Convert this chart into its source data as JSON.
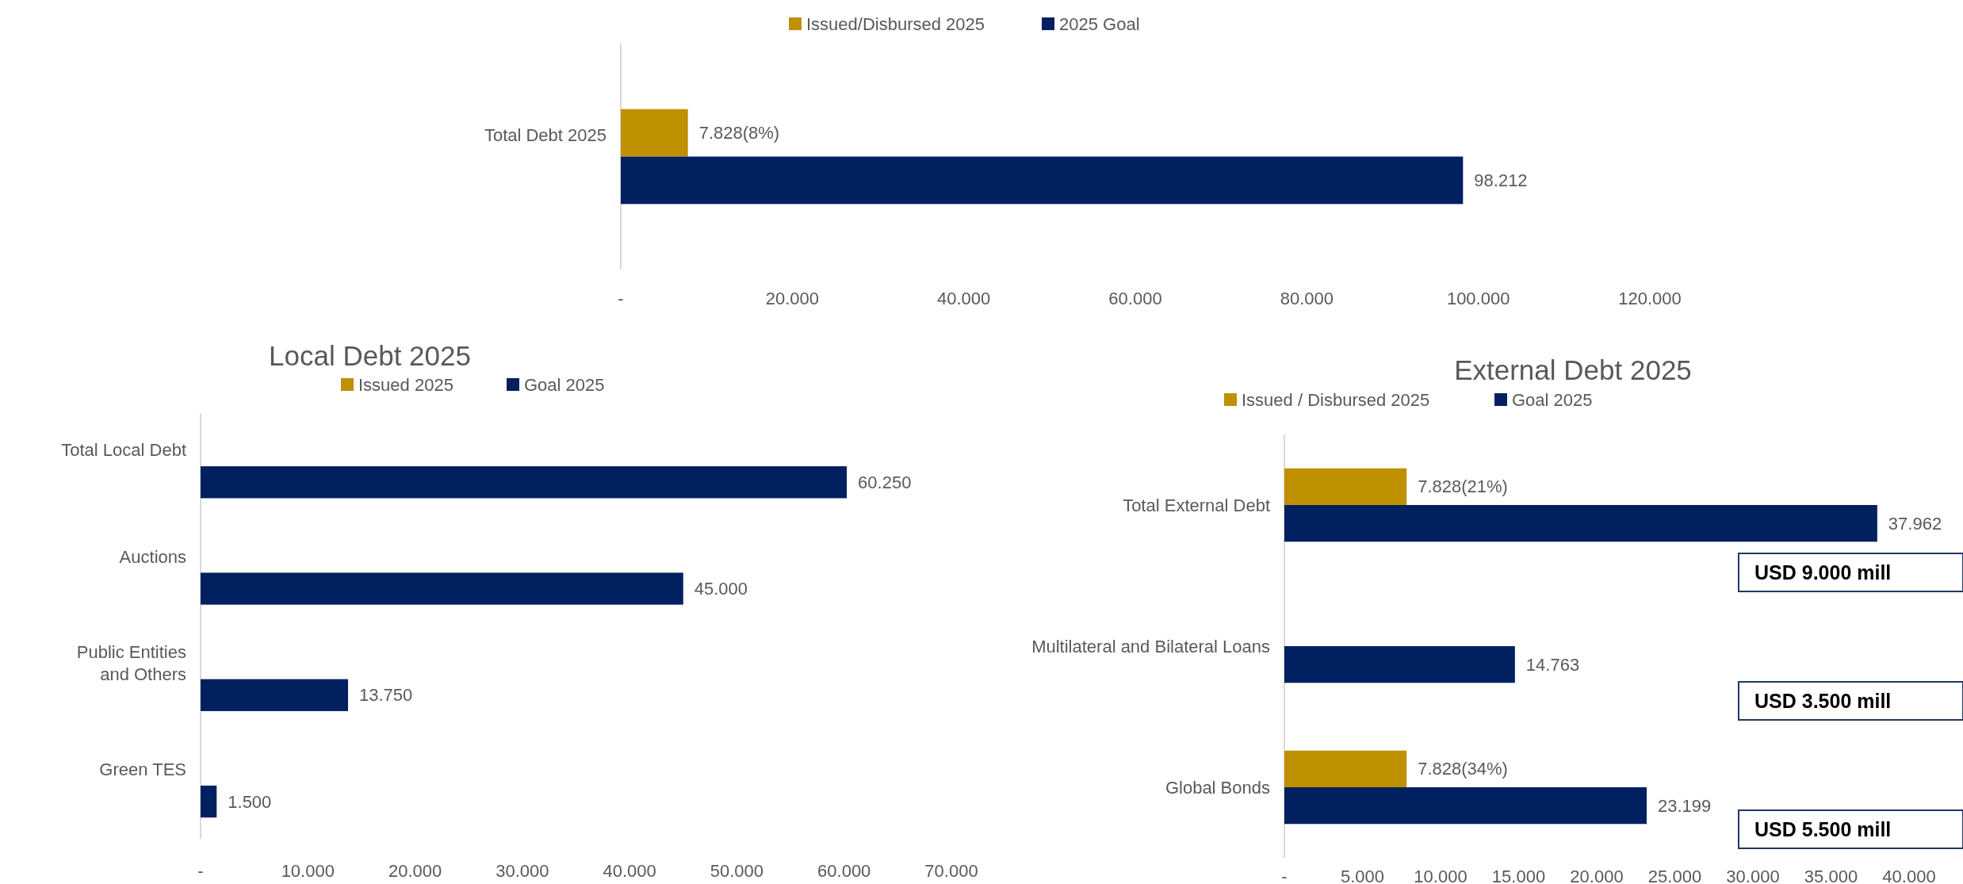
{
  "chart_data": [
    {
      "type": "bar",
      "orientation": "horizontal",
      "categories": [
        "Total Debt 2025"
      ],
      "series": [
        {
          "name": "Issued/Disbursed 2025",
          "color": "#bf9000",
          "values": [
            7828
          ],
          "value_labels": [
            "7.828(8%)"
          ]
        },
        {
          "name": "2025 Goal",
          "color": "#002060",
          "values": [
            98212
          ],
          "value_labels": [
            "98.212"
          ]
        }
      ],
      "xlim": [
        0,
        120000
      ],
      "xticks": [
        {
          "value": 0,
          "label": "-"
        },
        {
          "value": 20000,
          "label": "20.000"
        },
        {
          "value": 40000,
          "label": "40.000"
        },
        {
          "value": 60000,
          "label": "60.000"
        },
        {
          "value": 80000,
          "label": "80.000"
        },
        {
          "value": 100000,
          "label": "100.000"
        },
        {
          "value": 120000,
          "label": "120.000"
        }
      ],
      "legend": "top",
      "grid": false
    },
    {
      "type": "bar",
      "orientation": "horizontal",
      "title": "Local Debt 2025",
      "categories": [
        "Total Local Debt",
        "Auctions",
        "Public Entities and Others",
        "Green TES"
      ],
      "series": [
        {
          "name": "Issued 2025",
          "color": "#bf9000",
          "values": [
            null,
            null,
            null,
            null
          ]
        },
        {
          "name": "Goal 2025",
          "color": "#002060",
          "values": [
            60250,
            45000,
            13750,
            1500
          ],
          "value_labels": [
            "60.250",
            "45.000",
            "13.750",
            "1.500"
          ]
        }
      ],
      "xlim": [
        0,
        70000
      ],
      "xticks": [
        {
          "value": 0,
          "label": "-"
        },
        {
          "value": 10000,
          "label": "10.000"
        },
        {
          "value": 20000,
          "label": "20.000"
        },
        {
          "value": 30000,
          "label": "30.000"
        },
        {
          "value": 40000,
          "label": "40.000"
        },
        {
          "value": 50000,
          "label": "50.000"
        },
        {
          "value": 60000,
          "label": "60.000"
        },
        {
          "value": 70000,
          "label": "70.000"
        }
      ],
      "legend": "top",
      "grid": false
    },
    {
      "type": "bar",
      "orientation": "horizontal",
      "title": "External Debt 2025",
      "categories": [
        "Total External Debt",
        "Multilateral and Bilateral Loans",
        "Global Bonds"
      ],
      "series": [
        {
          "name": "Issued / Disbursed 2025",
          "color": "#bf9000",
          "values": [
            7828,
            null,
            7828
          ],
          "value_labels": [
            "7.828(21%)",
            null,
            "7.828(34%)"
          ]
        },
        {
          "name": "Goal 2025",
          "color": "#002060",
          "values": [
            37962,
            14763,
            23199
          ],
          "value_labels": [
            "37.962",
            "14.763",
            "23.199"
          ]
        }
      ],
      "xlim": [
        0,
        40000
      ],
      "xticks": [
        {
          "value": 0,
          "label": "-"
        },
        {
          "value": 5000,
          "label": "5.000"
        },
        {
          "value": 10000,
          "label": "10.000"
        },
        {
          "value": 15000,
          "label": "15.000"
        },
        {
          "value": 20000,
          "label": "20.000"
        },
        {
          "value": 25000,
          "label": "25.000"
        },
        {
          "value": 30000,
          "label": "30.000"
        },
        {
          "value": 35000,
          "label": "35.000"
        },
        {
          "value": 40000,
          "label": "40.000"
        }
      ],
      "legend": "top",
      "grid": false,
      "annotations": [
        "USD 9.000 mill",
        "USD 3.500 mill",
        "USD 5.500 mill"
      ]
    }
  ]
}
